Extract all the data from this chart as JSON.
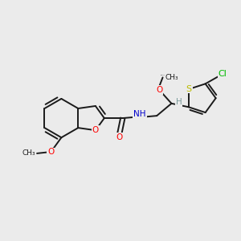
{
  "background_color": "#ebebeb",
  "bond_color": "#1a1a1a",
  "atom_colors": {
    "O": "#ff0000",
    "N": "#0000cc",
    "S": "#bbbb00",
    "Cl": "#00bb00",
    "C": "#1a1a1a",
    "H": "#7a9a9a"
  },
  "figsize": [
    3.0,
    3.0
  ],
  "dpi": 100,
  "xlim": [
    0,
    10
  ],
  "ylim": [
    0,
    10
  ]
}
